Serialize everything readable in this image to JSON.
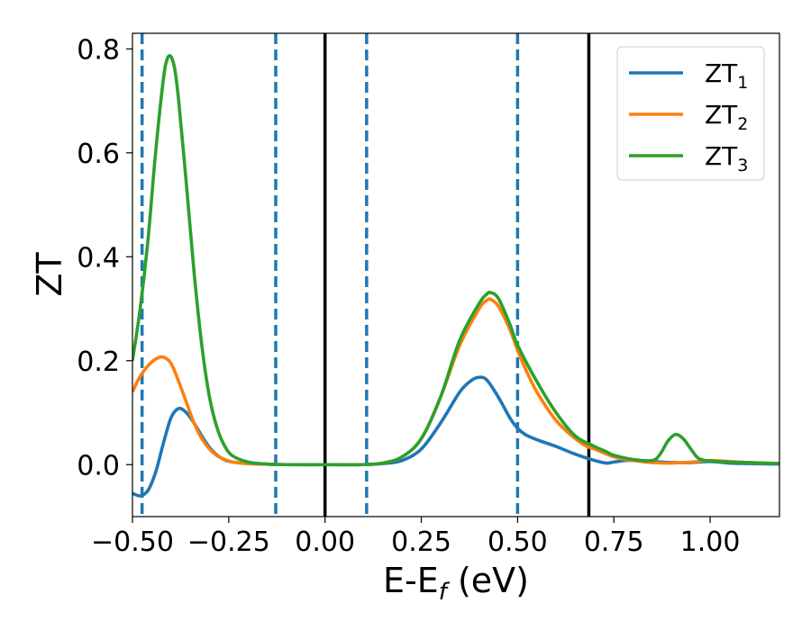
{
  "chart_data": {
    "type": "line",
    "title": "",
    "xlabel": {
      "main": "E-E",
      "sub": "f",
      "unit": " (eV)"
    },
    "ylabel": "ZT",
    "xlim": [
      -0.5,
      1.18
    ],
    "ylim": [
      -0.1,
      0.83
    ],
    "xticks": [
      -0.5,
      -0.25,
      0.0,
      0.25,
      0.5,
      0.75,
      1.0
    ],
    "xtick_labels": [
      "−0.50",
      "−0.25",
      "0.00",
      "0.25",
      "0.50",
      "0.75",
      "1.00"
    ],
    "yticks": [
      0.0,
      0.2,
      0.4,
      0.6,
      0.8
    ],
    "ytick_labels": [
      "0.0",
      "0.2",
      "0.4",
      "0.6",
      "0.8"
    ],
    "grid": false,
    "legend_position": "top-right",
    "vlines_dashed": [
      -0.475,
      -0.128,
      0.108,
      0.5
    ],
    "vlines_solid": [
      0.0,
      0.685
    ],
    "series": [
      {
        "name": "ZT",
        "sub": "1",
        "color": "#1f77b4",
        "x": [
          -0.5,
          -0.48,
          -0.46,
          -0.44,
          -0.42,
          -0.4,
          -0.38,
          -0.36,
          -0.34,
          -0.32,
          -0.3,
          -0.28,
          -0.26,
          -0.24,
          -0.2,
          -0.15,
          -0.1,
          0.0,
          0.1,
          0.15,
          0.2,
          0.25,
          0.3,
          0.35,
          0.38,
          0.4,
          0.42,
          0.45,
          0.48,
          0.5,
          0.52,
          0.55,
          0.6,
          0.65,
          0.7,
          0.73,
          0.75,
          0.78,
          0.8,
          0.85,
          0.9,
          0.95,
          1.0,
          1.05,
          1.1,
          1.18
        ],
        "y": [
          -0.055,
          -0.06,
          -0.05,
          -0.015,
          0.04,
          0.09,
          0.108,
          0.1,
          0.08,
          0.055,
          0.033,
          0.018,
          0.009,
          0.005,
          0.002,
          0.001,
          0.0,
          0.0,
          0.0,
          0.002,
          0.008,
          0.03,
          0.08,
          0.14,
          0.162,
          0.168,
          0.163,
          0.13,
          0.09,
          0.07,
          0.058,
          0.048,
          0.035,
          0.02,
          0.008,
          0.003,
          0.005,
          0.008,
          0.008,
          0.006,
          0.004,
          0.004,
          0.006,
          0.003,
          0.002,
          0.001
        ]
      },
      {
        "name": "ZT",
        "sub": "2",
        "color": "#ff7f0e",
        "x": [
          -0.5,
          -0.48,
          -0.46,
          -0.44,
          -0.42,
          -0.4,
          -0.38,
          -0.36,
          -0.34,
          -0.32,
          -0.3,
          -0.28,
          -0.26,
          -0.24,
          -0.2,
          -0.15,
          -0.1,
          0.0,
          0.1,
          0.15,
          0.2,
          0.25,
          0.3,
          0.35,
          0.4,
          0.42,
          0.43,
          0.45,
          0.48,
          0.5,
          0.52,
          0.55,
          0.6,
          0.65,
          0.68,
          0.7,
          0.75,
          0.8,
          0.85,
          0.9,
          0.95,
          1.0,
          1.05,
          1.1,
          1.18
        ],
        "y": [
          0.14,
          0.17,
          0.19,
          0.203,
          0.207,
          0.195,
          0.16,
          0.12,
          0.08,
          0.05,
          0.03,
          0.017,
          0.01,
          0.005,
          0.002,
          0.001,
          0.0,
          0.0,
          0.0,
          0.003,
          0.015,
          0.05,
          0.13,
          0.23,
          0.3,
          0.316,
          0.318,
          0.305,
          0.26,
          0.22,
          0.185,
          0.14,
          0.085,
          0.05,
          0.035,
          0.03,
          0.015,
          0.008,
          0.004,
          0.003,
          0.005,
          0.008,
          0.006,
          0.004,
          0.002
        ]
      },
      {
        "name": "ZT",
        "sub": "3",
        "color": "#2ca02c",
        "x": [
          -0.5,
          -0.48,
          -0.46,
          -0.44,
          -0.42,
          -0.41,
          -0.4,
          -0.39,
          -0.38,
          -0.36,
          -0.34,
          -0.32,
          -0.3,
          -0.28,
          -0.26,
          -0.24,
          -0.2,
          -0.15,
          -0.1,
          0.0,
          0.1,
          0.15,
          0.2,
          0.25,
          0.3,
          0.35,
          0.4,
          0.42,
          0.43,
          0.45,
          0.48,
          0.5,
          0.55,
          0.6,
          0.65,
          0.7,
          0.73,
          0.75,
          0.8,
          0.85,
          0.87,
          0.89,
          0.91,
          0.93,
          0.95,
          0.97,
          1.0,
          1.05,
          1.1,
          1.18
        ],
        "y": [
          0.2,
          0.3,
          0.43,
          0.6,
          0.74,
          0.78,
          0.785,
          0.76,
          0.7,
          0.54,
          0.37,
          0.23,
          0.13,
          0.07,
          0.035,
          0.017,
          0.005,
          0.001,
          0.0,
          0.0,
          0.0,
          0.003,
          0.015,
          0.05,
          0.13,
          0.24,
          0.31,
          0.328,
          0.331,
          0.32,
          0.27,
          0.23,
          0.16,
          0.1,
          0.055,
          0.035,
          0.025,
          0.018,
          0.01,
          0.008,
          0.02,
          0.045,
          0.058,
          0.05,
          0.03,
          0.012,
          0.007,
          0.005,
          0.004,
          0.002
        ]
      }
    ]
  }
}
